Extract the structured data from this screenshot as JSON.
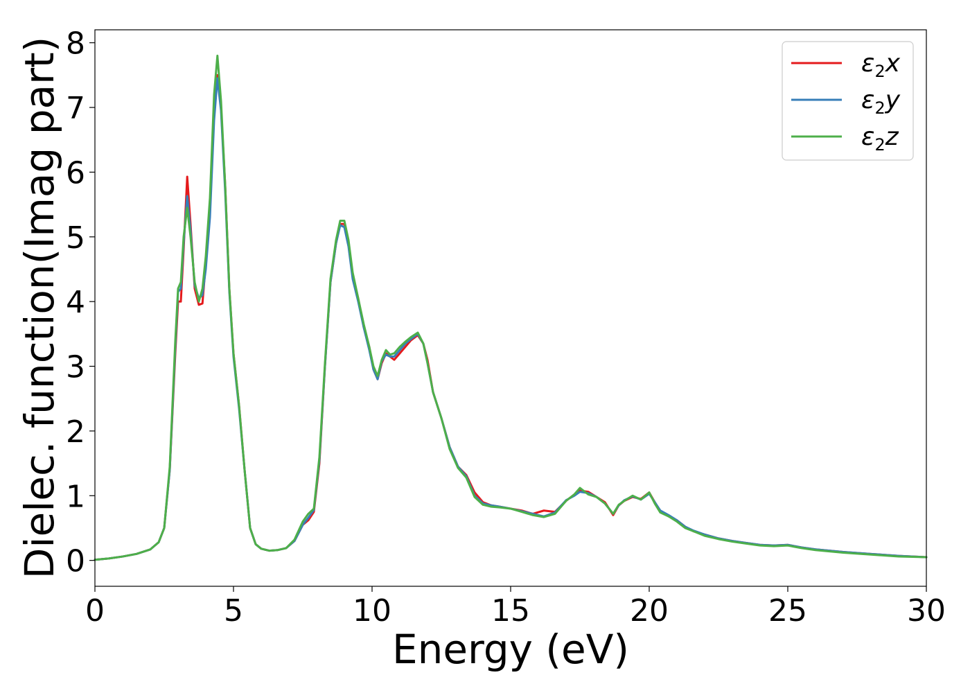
{
  "chart_data": {
    "type": "line",
    "title": "",
    "xlabel": "Energy (eV)",
    "ylabel": "Dielec. function(Imag part)",
    "xlim": [
      0,
      30
    ],
    "ylim": [
      -0.4,
      8.2
    ],
    "xticks": [
      0,
      5,
      10,
      15,
      20,
      25,
      30
    ],
    "yticks": [
      0,
      1,
      2,
      3,
      4,
      5,
      6,
      7,
      8
    ],
    "grid": false,
    "legend_position": "top-right",
    "series": [
      {
        "name": "ε₂x",
        "legend_main": "ε",
        "legend_sub": "2",
        "legend_suffix": "x",
        "color": "#e41a1c",
        "x": [
          0,
          0.5,
          1,
          1.5,
          2,
          2.3,
          2.5,
          2.7,
          2.9,
          3.0,
          3.1,
          3.2,
          3.33,
          3.45,
          3.6,
          3.75,
          3.88,
          4.0,
          4.15,
          4.3,
          4.42,
          4.55,
          4.7,
          4.85,
          5.0,
          5.2,
          5.4,
          5.6,
          5.8,
          6.0,
          6.3,
          6.6,
          6.9,
          7.2,
          7.5,
          7.7,
          7.9,
          8.1,
          8.3,
          8.5,
          8.7,
          8.85,
          9.0,
          9.15,
          9.3,
          9.5,
          9.7,
          9.9,
          10.05,
          10.2,
          10.35,
          10.5,
          10.65,
          10.8,
          11.0,
          11.2,
          11.4,
          11.65,
          11.85,
          12.0,
          12.2,
          12.5,
          12.8,
          13.1,
          13.4,
          13.7,
          14.0,
          14.3,
          14.6,
          15.0,
          15.4,
          15.8,
          16.2,
          16.6,
          17.0,
          17.3,
          17.5,
          17.8,
          18.1,
          18.4,
          18.7,
          18.9,
          19.1,
          19.4,
          19.7,
          20.0,
          20.2,
          20.4,
          20.7,
          21.0,
          21.3,
          21.6,
          22.0,
          22.5,
          23.0,
          23.5,
          24.0,
          24.5,
          25.0,
          25.5,
          26.0,
          27.0,
          28.0,
          29.0,
          30.0
        ],
        "y": [
          0.01,
          0.03,
          0.06,
          0.1,
          0.17,
          0.28,
          0.5,
          1.4,
          3.2,
          4.0,
          4.0,
          4.8,
          5.93,
          5.2,
          4.2,
          3.95,
          3.97,
          4.6,
          5.5,
          7.0,
          7.5,
          7.0,
          5.8,
          4.2,
          3.2,
          2.4,
          1.4,
          0.5,
          0.25,
          0.18,
          0.15,
          0.16,
          0.19,
          0.3,
          0.55,
          0.62,
          0.75,
          1.5,
          3.0,
          4.3,
          4.9,
          5.2,
          5.2,
          4.9,
          4.4,
          4.05,
          3.6,
          3.3,
          2.95,
          2.8,
          3.05,
          3.2,
          3.15,
          3.1,
          3.2,
          3.3,
          3.4,
          3.48,
          3.35,
          3.1,
          2.6,
          2.2,
          1.75,
          1.45,
          1.32,
          1.05,
          0.9,
          0.85,
          0.83,
          0.8,
          0.77,
          0.72,
          0.77,
          0.75,
          0.92,
          1.02,
          1.08,
          1.06,
          0.98,
          0.9,
          0.7,
          0.85,
          0.92,
          0.98,
          0.95,
          1.05,
          0.9,
          0.76,
          0.68,
          0.62,
          0.52,
          0.45,
          0.4,
          0.34,
          0.3,
          0.27,
          0.24,
          0.23,
          0.24,
          0.2,
          0.17,
          0.13,
          0.1,
          0.07,
          0.05
        ]
      },
      {
        "name": "ε₂y",
        "legend_main": "ε",
        "legend_sub": "2",
        "legend_suffix": "y",
        "color": "#377eb8",
        "x": [
          0,
          0.5,
          1,
          1.5,
          2,
          2.3,
          2.5,
          2.7,
          2.9,
          3.0,
          3.1,
          3.2,
          3.33,
          3.45,
          3.6,
          3.75,
          3.88,
          4.0,
          4.15,
          4.3,
          4.42,
          4.55,
          4.7,
          4.85,
          5.0,
          5.2,
          5.4,
          5.6,
          5.8,
          6.0,
          6.3,
          6.6,
          6.9,
          7.2,
          7.5,
          7.7,
          7.9,
          8.1,
          8.3,
          8.5,
          8.7,
          8.85,
          9.0,
          9.15,
          9.3,
          9.5,
          9.7,
          9.9,
          10.05,
          10.2,
          10.35,
          10.5,
          10.65,
          10.8,
          11.0,
          11.2,
          11.4,
          11.65,
          11.85,
          12.0,
          12.2,
          12.5,
          12.8,
          13.1,
          13.4,
          13.7,
          14.0,
          14.3,
          14.6,
          15.0,
          15.4,
          15.8,
          16.2,
          16.6,
          17.0,
          17.3,
          17.5,
          17.8,
          18.1,
          18.4,
          18.7,
          18.9,
          19.1,
          19.4,
          19.7,
          20.0,
          20.2,
          20.4,
          20.7,
          21.0,
          21.3,
          21.6,
          22.0,
          22.5,
          23.0,
          23.5,
          24.0,
          24.5,
          25.0,
          25.5,
          26.0,
          27.0,
          28.0,
          29.0,
          30.0
        ],
        "y": [
          0.01,
          0.03,
          0.06,
          0.1,
          0.17,
          0.28,
          0.5,
          1.4,
          3.3,
          4.15,
          4.2,
          4.9,
          5.63,
          5.1,
          4.25,
          4.05,
          4.1,
          4.5,
          5.3,
          6.8,
          7.45,
          6.95,
          5.7,
          4.15,
          3.15,
          2.35,
          1.4,
          0.5,
          0.25,
          0.18,
          0.15,
          0.16,
          0.19,
          0.3,
          0.55,
          0.66,
          0.78,
          1.55,
          3.0,
          4.3,
          4.9,
          5.18,
          5.15,
          4.85,
          4.35,
          4.0,
          3.6,
          3.25,
          2.95,
          2.8,
          3.08,
          3.18,
          3.15,
          3.15,
          3.25,
          3.35,
          3.42,
          3.5,
          3.35,
          3.05,
          2.6,
          2.2,
          1.75,
          1.45,
          1.3,
          1.0,
          0.88,
          0.85,
          0.83,
          0.8,
          0.76,
          0.72,
          0.68,
          0.74,
          0.93,
          1.0,
          1.06,
          1.04,
          0.98,
          0.88,
          0.72,
          0.85,
          0.93,
          0.99,
          0.94,
          1.03,
          0.9,
          0.77,
          0.7,
          0.62,
          0.52,
          0.46,
          0.4,
          0.34,
          0.3,
          0.27,
          0.24,
          0.23,
          0.24,
          0.2,
          0.17,
          0.13,
          0.1,
          0.07,
          0.05
        ]
      },
      {
        "name": "ε₂z",
        "legend_main": "ε",
        "legend_sub": "2",
        "legend_suffix": "z",
        "color": "#4daf4a",
        "x": [
          0,
          0.5,
          1,
          1.5,
          2,
          2.3,
          2.5,
          2.7,
          2.9,
          3.0,
          3.1,
          3.2,
          3.33,
          3.45,
          3.6,
          3.75,
          3.88,
          4.0,
          4.15,
          4.3,
          4.42,
          4.55,
          4.7,
          4.85,
          5.0,
          5.2,
          5.4,
          5.6,
          5.8,
          6.0,
          6.3,
          6.6,
          6.9,
          7.2,
          7.5,
          7.7,
          7.9,
          8.1,
          8.3,
          8.5,
          8.7,
          8.85,
          9.0,
          9.15,
          9.3,
          9.5,
          9.7,
          9.9,
          10.05,
          10.2,
          10.35,
          10.5,
          10.65,
          10.8,
          11.0,
          11.2,
          11.4,
          11.65,
          11.85,
          12.0,
          12.2,
          12.5,
          12.8,
          13.1,
          13.4,
          13.7,
          14.0,
          14.3,
          14.6,
          15.0,
          15.4,
          15.8,
          16.2,
          16.6,
          17.0,
          17.3,
          17.5,
          17.8,
          18.1,
          18.4,
          18.7,
          18.9,
          19.1,
          19.4,
          19.7,
          20.0,
          20.2,
          20.4,
          20.7,
          21.0,
          21.3,
          21.6,
          22.0,
          22.5,
          23.0,
          23.5,
          24.0,
          24.5,
          25.0,
          25.5,
          26.0,
          27.0,
          28.0,
          29.0,
          30.0
        ],
        "y": [
          0.01,
          0.03,
          0.06,
          0.1,
          0.17,
          0.28,
          0.5,
          1.45,
          3.4,
          4.2,
          4.3,
          5.0,
          5.45,
          5.0,
          4.3,
          4.0,
          4.2,
          4.7,
          5.6,
          7.2,
          7.8,
          7.1,
          5.8,
          4.2,
          3.2,
          2.4,
          1.4,
          0.5,
          0.25,
          0.18,
          0.15,
          0.16,
          0.19,
          0.32,
          0.6,
          0.72,
          0.8,
          1.6,
          3.05,
          4.35,
          4.95,
          5.25,
          5.25,
          4.95,
          4.45,
          4.05,
          3.65,
          3.3,
          3.0,
          2.85,
          3.1,
          3.25,
          3.18,
          3.2,
          3.3,
          3.38,
          3.45,
          3.52,
          3.35,
          3.05,
          2.6,
          2.2,
          1.72,
          1.43,
          1.28,
          0.98,
          0.86,
          0.83,
          0.82,
          0.8,
          0.75,
          0.7,
          0.67,
          0.72,
          0.92,
          1.02,
          1.12,
          1.02,
          0.98,
          0.88,
          0.72,
          0.86,
          0.92,
          1.0,
          0.94,
          1.05,
          0.88,
          0.74,
          0.68,
          0.6,
          0.5,
          0.45,
          0.38,
          0.33,
          0.29,
          0.26,
          0.23,
          0.22,
          0.23,
          0.19,
          0.16,
          0.12,
          0.09,
          0.06,
          0.05
        ]
      }
    ]
  }
}
